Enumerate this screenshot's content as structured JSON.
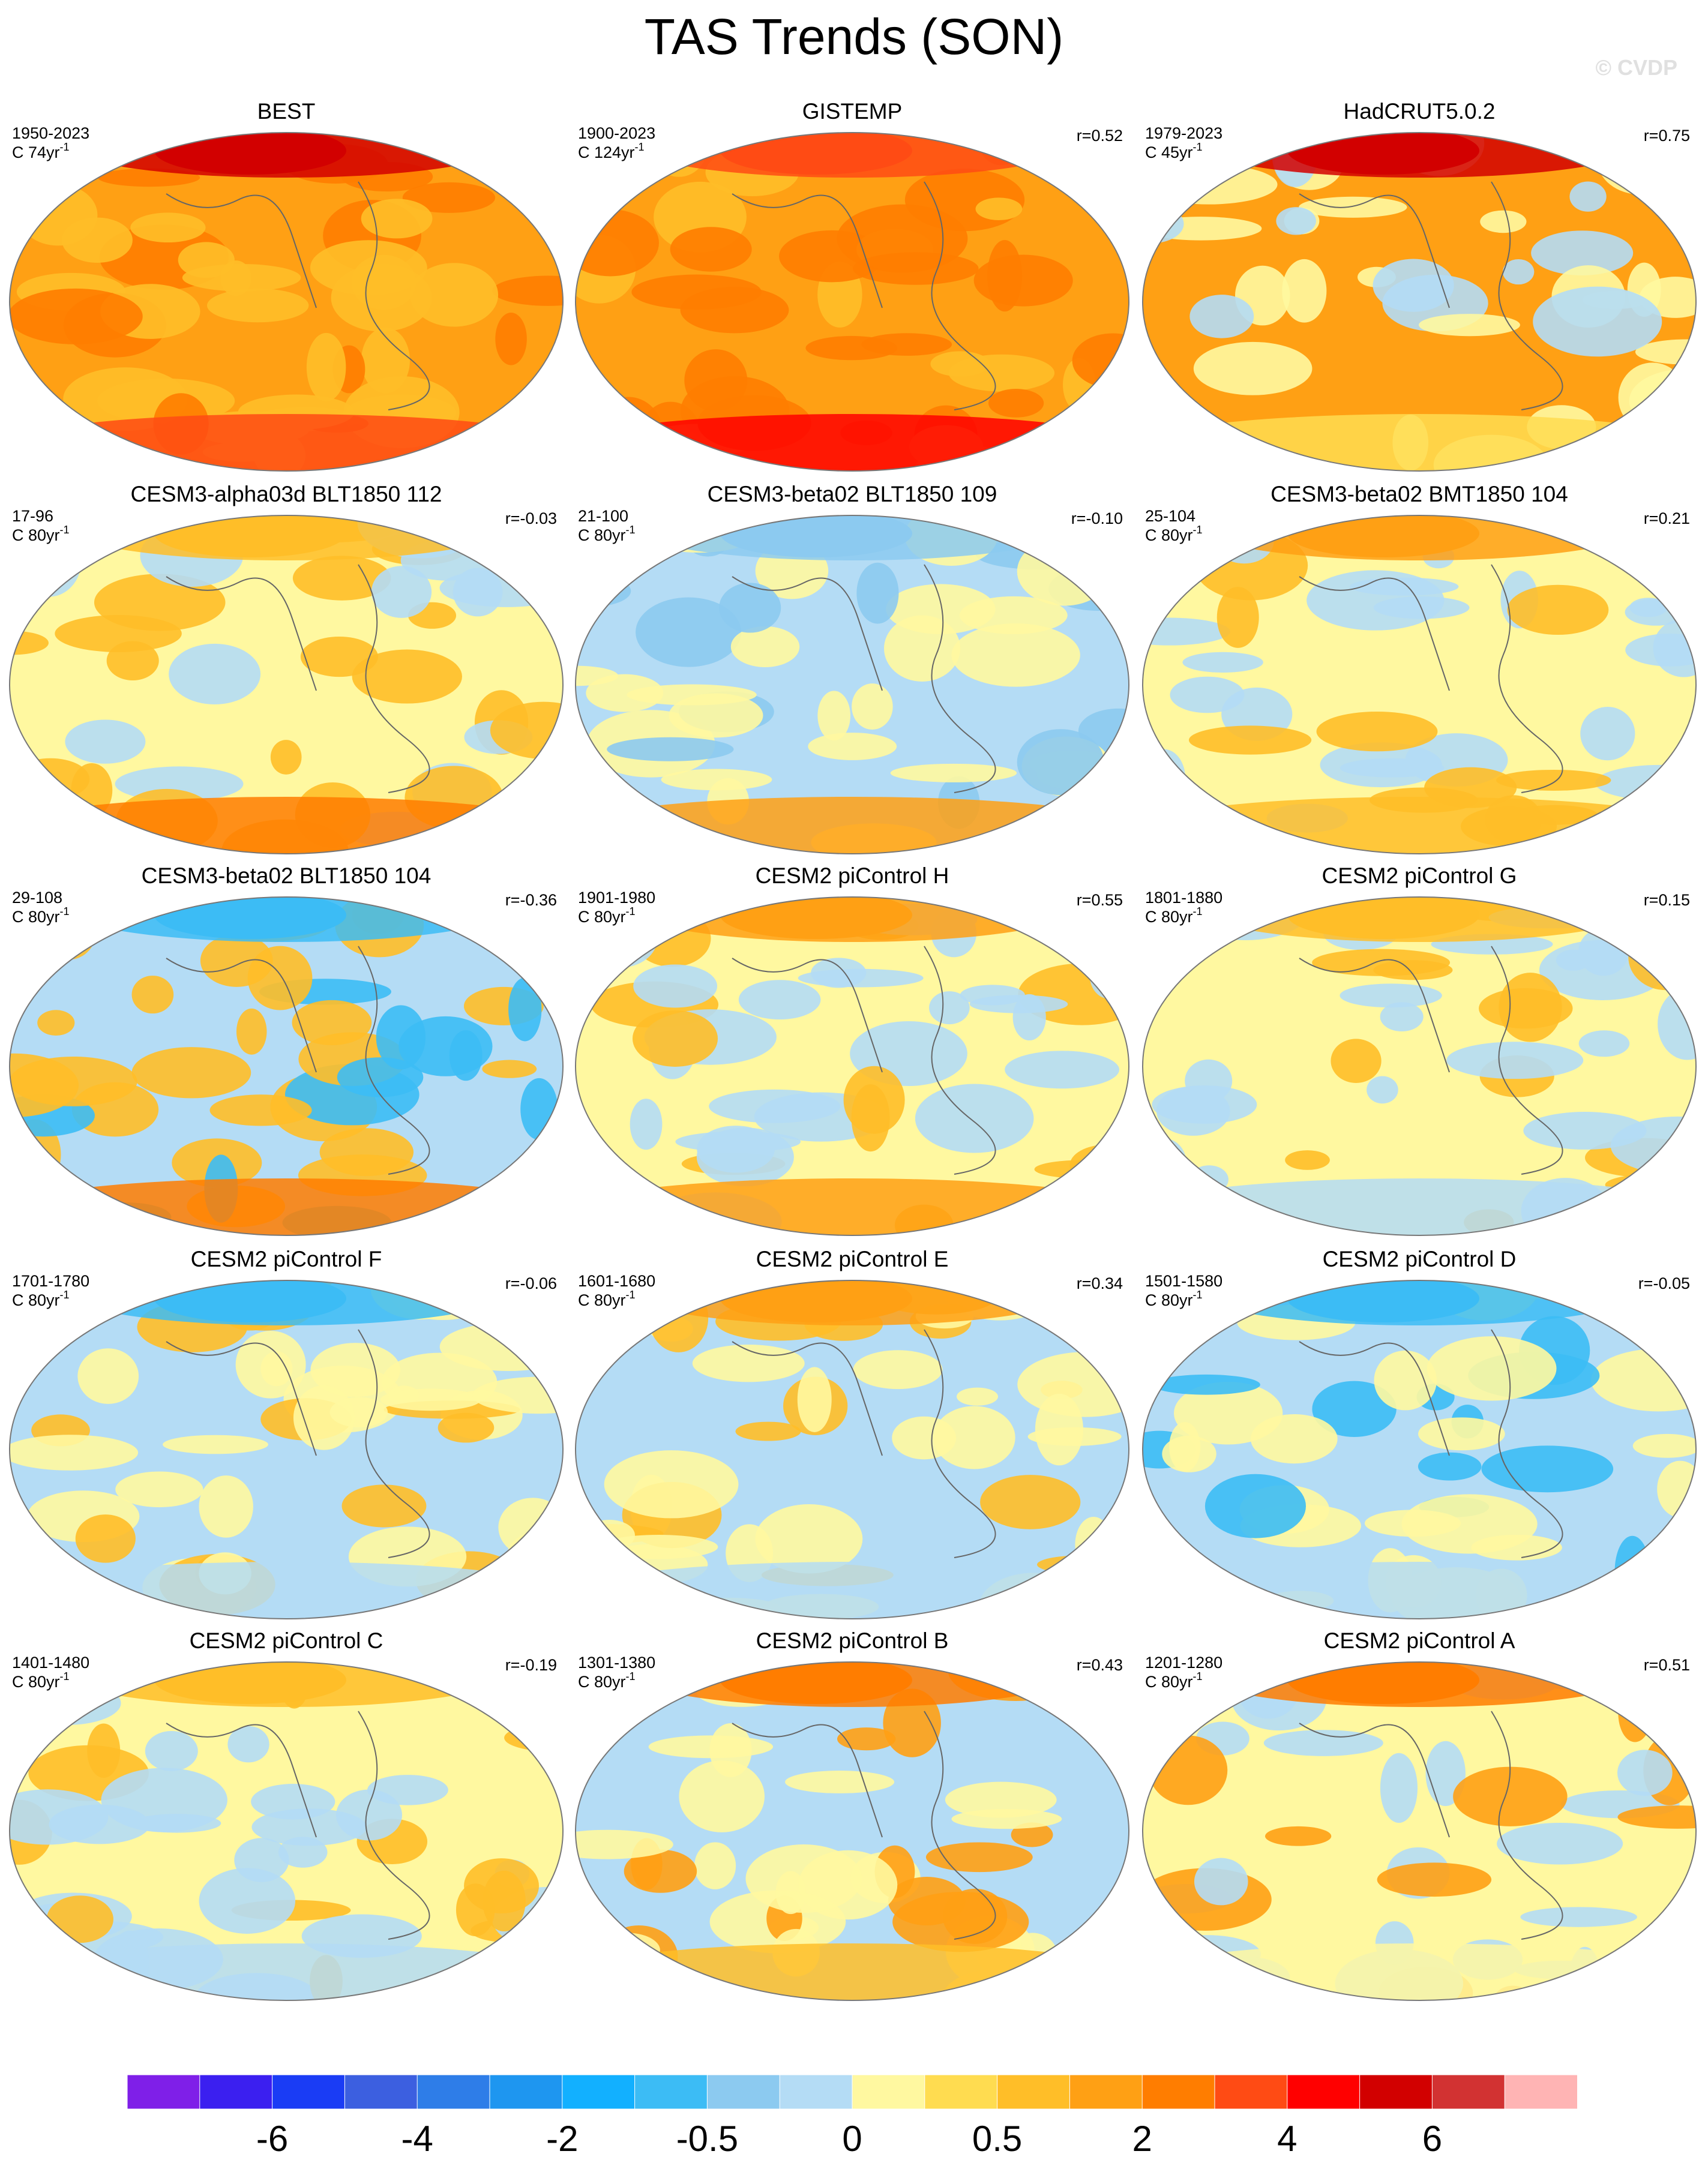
{
  "title": "TAS Trends (SON)",
  "watermark": "© CVDP",
  "panels": [
    {
      "title": "BEST",
      "period": "1950-2023",
      "units": "C 74yr",
      "exponent": "-1"
    },
    {
      "title": "GISTEMP",
      "period": "1900-2023",
      "units": "C 124yr",
      "exponent": "-1",
      "r": "r=0.52"
    },
    {
      "title": "HadCRUT5.0.2",
      "period": "1979-2023",
      "units": "C 45yr",
      "exponent": "-1",
      "r": "r=0.75"
    },
    {
      "title": "CESM3-alpha03d BLT1850 112",
      "period": "17-96",
      "units": "C 80yr",
      "exponent": "-1",
      "r": "r=-0.03"
    },
    {
      "title": "CESM3-beta02 BLT1850 109",
      "period": "21-100",
      "units": "C 80yr",
      "exponent": "-1",
      "r": "r=-0.10"
    },
    {
      "title": "CESM3-beta02 BMT1850 104",
      "period": "25-104",
      "units": "C 80yr",
      "exponent": "-1",
      "r": "r=0.21"
    },
    {
      "title": "CESM3-beta02 BLT1850 104",
      "period": "29-108",
      "units": "C 80yr",
      "exponent": "-1",
      "r": "r=-0.36"
    },
    {
      "title": "CESM2 piControl H",
      "period": "1901-1980",
      "units": "C 80yr",
      "exponent": "-1",
      "r": "r=0.55"
    },
    {
      "title": "CESM2 piControl G",
      "period": "1801-1880",
      "units": "C 80yr",
      "exponent": "-1",
      "r": "r=0.15"
    },
    {
      "title": "CESM2 piControl F",
      "period": "1701-1780",
      "units": "C 80yr",
      "exponent": "-1",
      "r": "r=-0.06"
    },
    {
      "title": "CESM2 piControl E",
      "period": "1601-1680",
      "units": "C 80yr",
      "exponent": "-1",
      "r": "r=0.34"
    },
    {
      "title": "CESM2 piControl D",
      "period": "1501-1580",
      "units": "C 80yr",
      "exponent": "-1",
      "r": "r=-0.05"
    },
    {
      "title": "CESM2 piControl C",
      "period": "1401-1480",
      "units": "C 80yr",
      "exponent": "-1",
      "r": "r=-0.19"
    },
    {
      "title": "CESM2 piControl B",
      "period": "1301-1380",
      "units": "C 80yr",
      "exponent": "-1",
      "r": "r=0.43"
    },
    {
      "title": "CESM2 piControl A",
      "period": "1201-1280",
      "units": "C 80yr",
      "exponent": "-1",
      "r": "r=0.51"
    }
  ],
  "colorbar": {
    "colors": [
      "#7f1fe8",
      "#3b1ff0",
      "#1a3cf5",
      "#3c5fe0",
      "#2e7de8",
      "#1e96f0",
      "#12b0ff",
      "#3cbcf5",
      "#8ccaf0",
      "#b4dcf5",
      "#fff8a0",
      "#ffdc50",
      "#ffbe28",
      "#ffa014",
      "#ff7d00",
      "#ff4b14",
      "#ff0000",
      "#d20000",
      "#d23232",
      "#ffb4b4"
    ],
    "labels": [
      -6,
      -4,
      -2,
      -0.5,
      0,
      0.5,
      2,
      4,
      6
    ]
  }
}
